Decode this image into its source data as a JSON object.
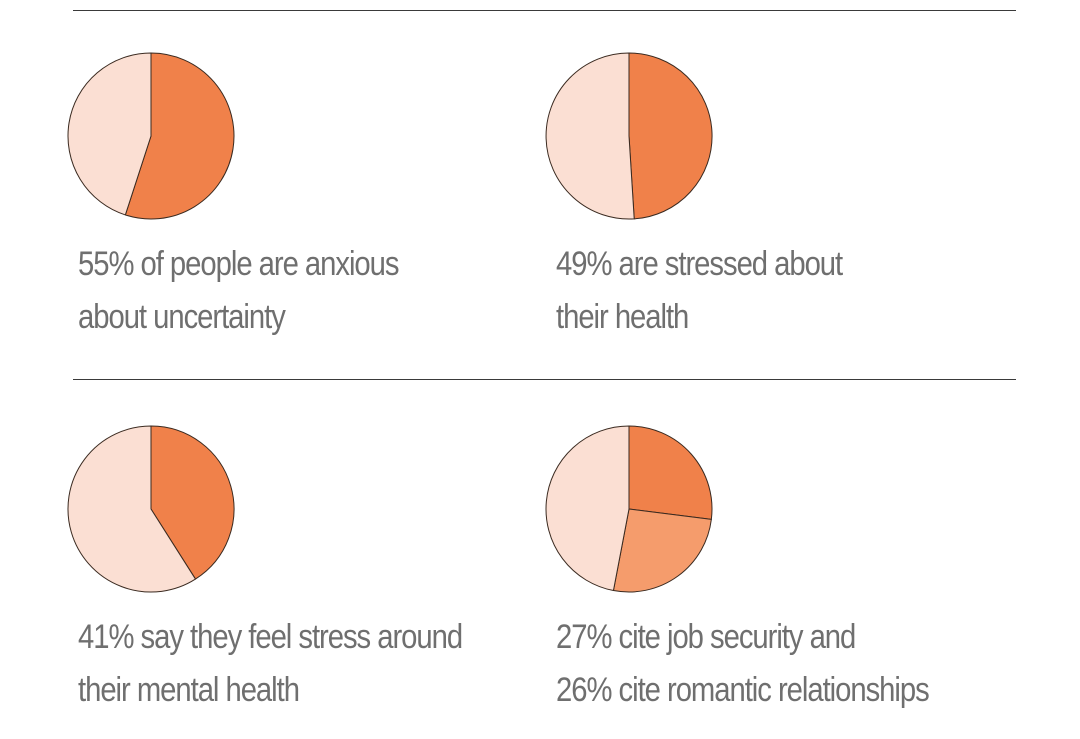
{
  "colors": {
    "primary": "#f0814a",
    "secondary": "#f59c6c",
    "remainder": "#fbdfd3",
    "outline": "#3a2a20"
  },
  "chart_data": [
    {
      "type": "pie",
      "slices": [
        {
          "value": 55,
          "color": "#f0814a"
        },
        {
          "value": 45,
          "color": "#fbdfd3"
        }
      ],
      "caption": [
        "55% of people are anxious",
        "about uncertainty"
      ]
    },
    {
      "type": "pie",
      "slices": [
        {
          "value": 49,
          "color": "#f0814a"
        },
        {
          "value": 51,
          "color": "#fbdfd3"
        }
      ],
      "caption": [
        "49% are stressed about",
        "their health"
      ]
    },
    {
      "type": "pie",
      "slices": [
        {
          "value": 41,
          "color": "#f0814a"
        },
        {
          "value": 59,
          "color": "#fbdfd3"
        }
      ],
      "caption": [
        "41% say they feel stress around",
        "their mental health"
      ]
    },
    {
      "type": "pie",
      "slices": [
        {
          "value": 27,
          "color": "#f0814a"
        },
        {
          "value": 26,
          "color": "#f59c6c"
        },
        {
          "value": 47,
          "color": "#fbdfd3"
        }
      ],
      "caption": [
        "27% cite job security and",
        "26% cite romantic relationships"
      ]
    }
  ]
}
